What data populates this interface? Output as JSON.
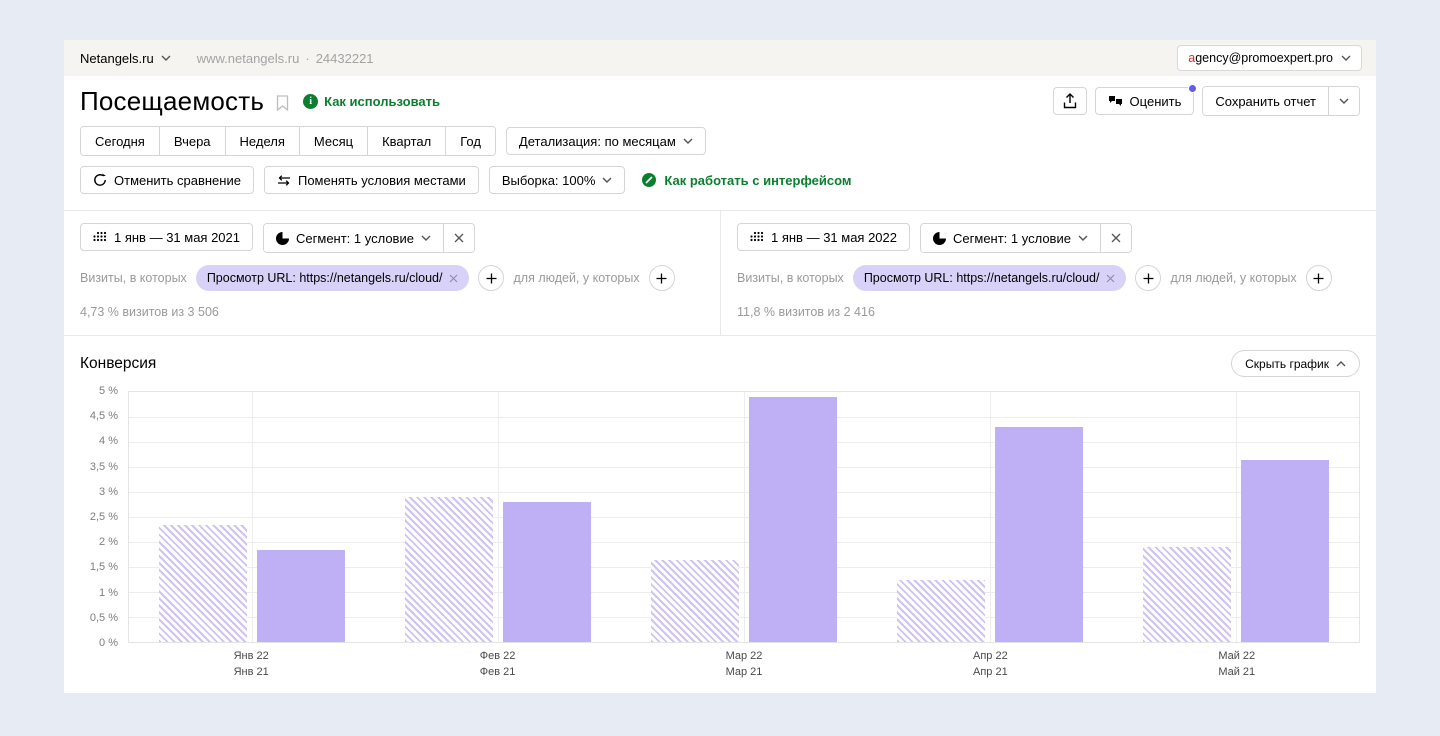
{
  "topbar": {
    "counter_name": "Netangels.ru",
    "site": "www.netangels.ru",
    "separator": "·",
    "counter_id": "24432221",
    "account_first": "a",
    "account_rest": "gency@promoexpert.pro"
  },
  "header": {
    "title": "Посещаемость",
    "how_to_use": "Как использовать",
    "rate": "Оценить",
    "save_report": "Сохранить отчет"
  },
  "periods": [
    "Сегодня",
    "Вчера",
    "Неделя",
    "Месяц",
    "Квартал",
    "Год"
  ],
  "detail_dropdown": "Детализация: по месяцам",
  "controls": {
    "cancel": "Отменить сравнение",
    "swap": "Поменять условия местами",
    "sampling": "Выборка: 100%",
    "help": "Как работать с интерфейсом"
  },
  "segments": [
    {
      "date": "1 янв — 31 мая 2021",
      "segment": "Сегмент: 1 условие",
      "visits_label": "Визиты, в которых",
      "chip": "Просмотр URL: https://netangels.ru/cloud/",
      "people_label": "для людей, у которых",
      "stats": "4,73 % визитов из 3 506"
    },
    {
      "date": "1 янв — 31 мая 2022",
      "segment": "Сегмент: 1 условие",
      "visits_label": "Визиты, в которых",
      "chip": "Просмотр URL: https://netangels.ru/cloud/",
      "people_label": "для людей, у которых",
      "stats": "11,8 % визитов из 2 416"
    }
  ],
  "conversion": {
    "title": "Конверсия",
    "hide": "Скрыть график"
  },
  "chart_data": {
    "type": "bar",
    "title": "Конверсия",
    "ylabel": "%",
    "ylim": [
      0,
      5
    ],
    "grid": true,
    "y_ticks": [
      "5 %",
      "4,5 %",
      "4 %",
      "3,5 %",
      "3 %",
      "2,5 %",
      "2 %",
      "1,5 %",
      "1 %",
      "0,5 %",
      "0 %"
    ],
    "categories_top": [
      "Янв 22",
      "Фев 22",
      "Мар 22",
      "Апр 22",
      "Май 22"
    ],
    "categories_bottom": [
      "Янв 21",
      "Фев 21",
      "Мар 21",
      "Апр 21",
      "Май 21"
    ],
    "series": [
      {
        "name": "bar-1-hatched",
        "pattern": "hatched",
        "values": [
          2.35,
          2.9,
          1.65,
          1.25,
          1.9
        ]
      },
      {
        "name": "bar-2-solid",
        "pattern": "solid",
        "values": [
          1.85,
          2.8,
          4.9,
          4.3,
          3.65
        ]
      }
    ],
    "colors": {
      "bar": "#bfb0f6",
      "hatch": "#cfc3f4"
    }
  },
  "colors": {
    "green": "#0b7f2f",
    "chip_bg": "#d9d2f8",
    "badge": "#635ce6",
    "page_bg": "#e7ebf4"
  }
}
